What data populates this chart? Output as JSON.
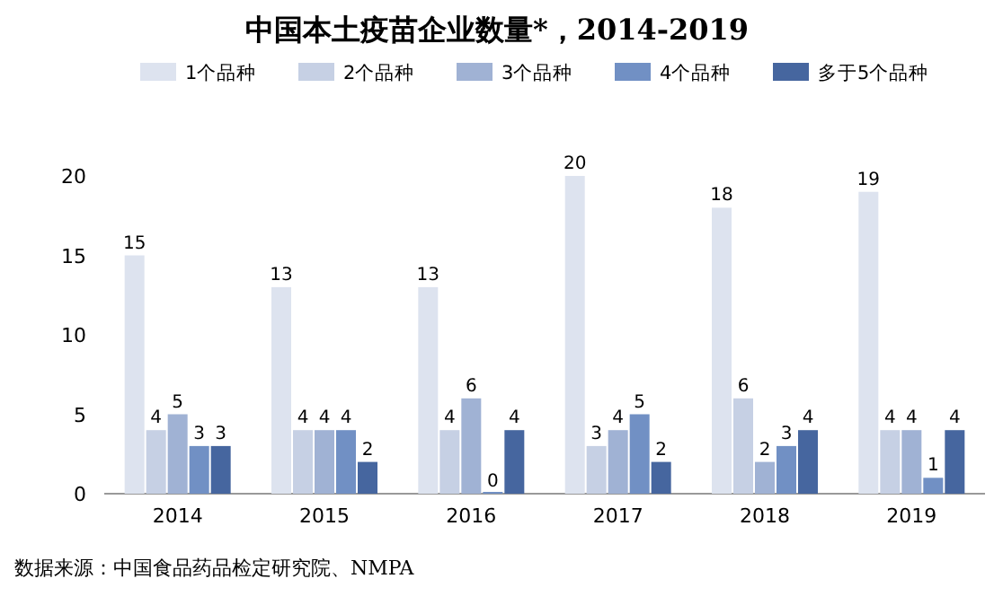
{
  "chart_data": {
    "type": "bar",
    "title": "中国本土疫苗企业数量*，2014-2019",
    "categories": [
      "2014",
      "2015",
      "2016",
      "2017",
      "2018",
      "2019"
    ],
    "series": [
      {
        "name": "1个品种",
        "color": "#dde3ef",
        "values": [
          15,
          13,
          13,
          20,
          18,
          19
        ]
      },
      {
        "name": "2个品种",
        "color": "#c6d0e4",
        "values": [
          4,
          4,
          4,
          3,
          6,
          4
        ]
      },
      {
        "name": "3个品种",
        "color": "#a0b2d4",
        "values": [
          5,
          4,
          6,
          4,
          2,
          4
        ]
      },
      {
        "name": "4个品种",
        "color": "#7190c4",
        "values": [
          3,
          4,
          0,
          5,
          3,
          1
        ]
      },
      {
        "name": "多于5个品种",
        "color": "#46669f",
        "values": [
          3,
          2,
          4,
          2,
          4,
          4
        ]
      }
    ],
    "ylim": [
      0,
      20
    ],
    "yticks": [
      0,
      5,
      10,
      15,
      20
    ],
    "data_labels": true,
    "legend": "top",
    "grid": false,
    "annotations": [
      "数据来源：中国食品药品检定研究院、NMPA"
    ]
  }
}
